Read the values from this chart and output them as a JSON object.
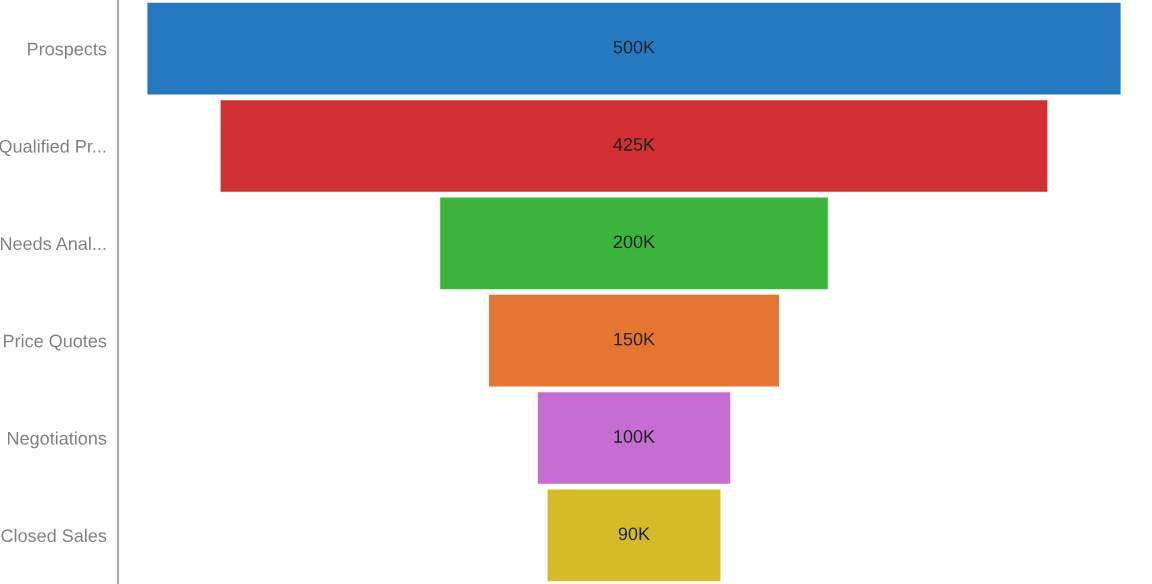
{
  "chart_data": {
    "type": "other",
    "categories": [
      "Prospects",
      "Qualified Pr...",
      "Needs Anal...",
      "Price Quotes",
      "Negotiations",
      "Closed Sales"
    ],
    "values": [
      500,
      425,
      200,
      150,
      100,
      90
    ],
    "value_labels": [
      "500K",
      "425K",
      "200K",
      "150K",
      "100K",
      "90K"
    ],
    "colors": [
      "#2479c1",
      "#d13134",
      "#3cb43c",
      "#e47632",
      "#c56dd0",
      "#d4bb27"
    ]
  }
}
